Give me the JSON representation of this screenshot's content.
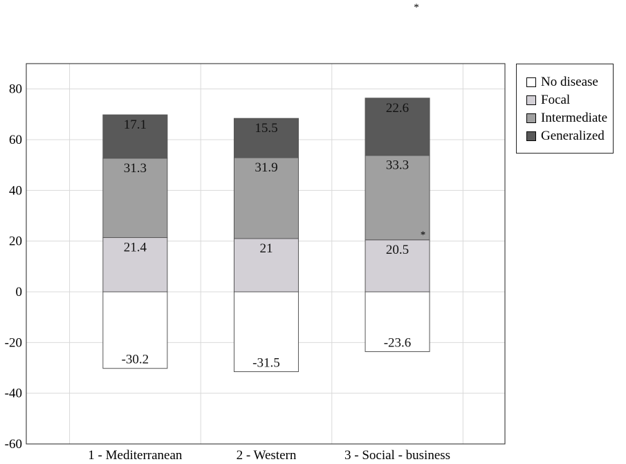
{
  "chart_data": {
    "type": "bar",
    "stacked": true,
    "categories": [
      "1 - Mediterranean",
      "2 - Western",
      "3 - Social - business"
    ],
    "series": [
      {
        "name": "No disease",
        "color": "#ffffff",
        "values": [
          -30.2,
          -31.5,
          -23.6
        ]
      },
      {
        "name": "Focal",
        "color": "#d3d0d6",
        "values": [
          21.4,
          21,
          20.5
        ]
      },
      {
        "name": "Intermediate",
        "color": "#a0a0a0",
        "values": [
          31.3,
          31.9,
          33.3
        ]
      },
      {
        "name": "Generalized",
        "color": "#595959",
        "values": [
          17.1,
          15.5,
          22.6
        ]
      }
    ],
    "ylim": [
      -60,
      90
    ],
    "yticks": [
      -60,
      -40,
      -20,
      0,
      20,
      40,
      60,
      80
    ],
    "grid": true,
    "legend_position": "right",
    "annotations": [
      {
        "text": "*",
        "location": "above chart, top-center"
      },
      {
        "text": "*",
        "category": "3 - Social - business",
        "series": "Focal"
      }
    ],
    "title": "",
    "xlabel": "",
    "ylabel": ""
  }
}
